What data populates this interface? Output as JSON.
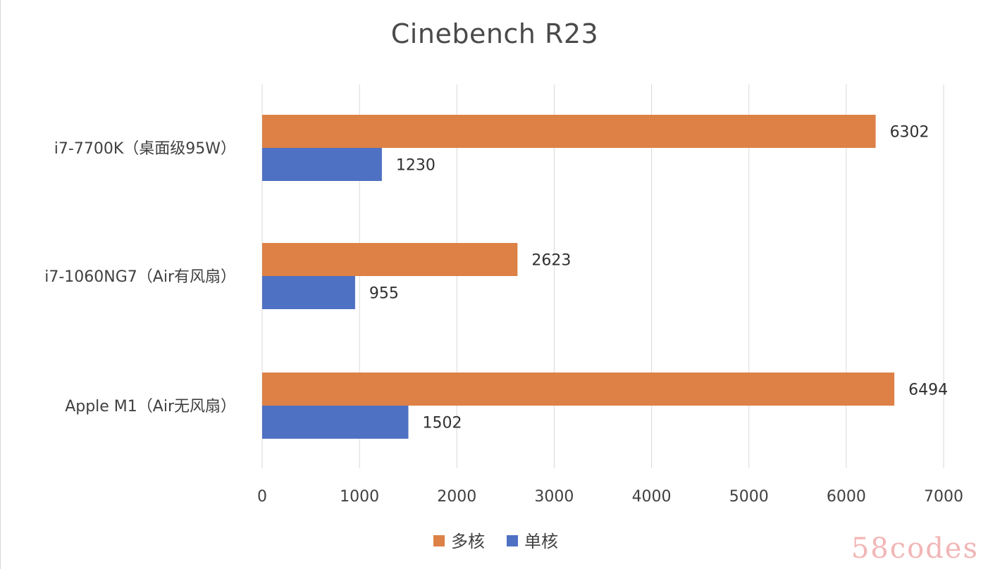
{
  "chart_data": {
    "type": "bar",
    "orientation": "horizontal",
    "title": "Cinebench R23",
    "categories": [
      "i7-7700K（桌面级95W）",
      "i7-1060NG7（Air有风扇）",
      "Apple M1（Air无风扇）"
    ],
    "series": [
      {
        "name": "多核",
        "color": "#dd8146",
        "values": [
          6302,
          2623,
          6494
        ]
      },
      {
        "name": "单核",
        "color": "#4f71c3",
        "values": [
          1230,
          955,
          1502
        ]
      }
    ],
    "xlim": [
      0,
      7000
    ],
    "xticks": [
      0,
      1000,
      2000,
      3000,
      4000,
      5000,
      6000,
      7000
    ],
    "grid": "vertical",
    "legend": "bottom"
  },
  "watermark": "58codes"
}
